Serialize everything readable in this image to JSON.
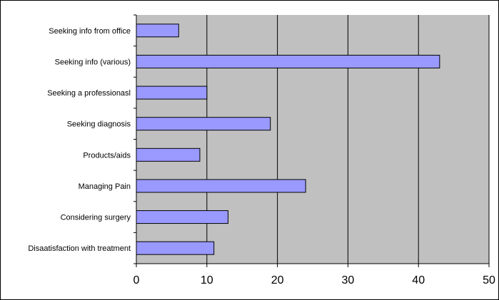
{
  "chart_data": {
    "type": "bar",
    "orientation": "horizontal",
    "categories": [
      "Seeking info from office",
      "Seeking info (various)",
      "Seeking a professionasl",
      "Seeking diagnosis",
      "Products/aids",
      "Managing Pain",
      "Considering surgery",
      "Disaatisfaction with treatment"
    ],
    "values": [
      6,
      43,
      10,
      19,
      9,
      24,
      13,
      11
    ],
    "xlim": [
      0,
      50
    ],
    "x_ticks": [
      0,
      10,
      20,
      30,
      40,
      50
    ],
    "title": "",
    "xlabel": "",
    "ylabel": "",
    "grid": "vertical",
    "legend": "none",
    "colors": {
      "plot_background": "#c0c0c0",
      "bar_fill": "#9999ff",
      "bar_stroke": "#000000",
      "gridline": "#000000"
    }
  }
}
